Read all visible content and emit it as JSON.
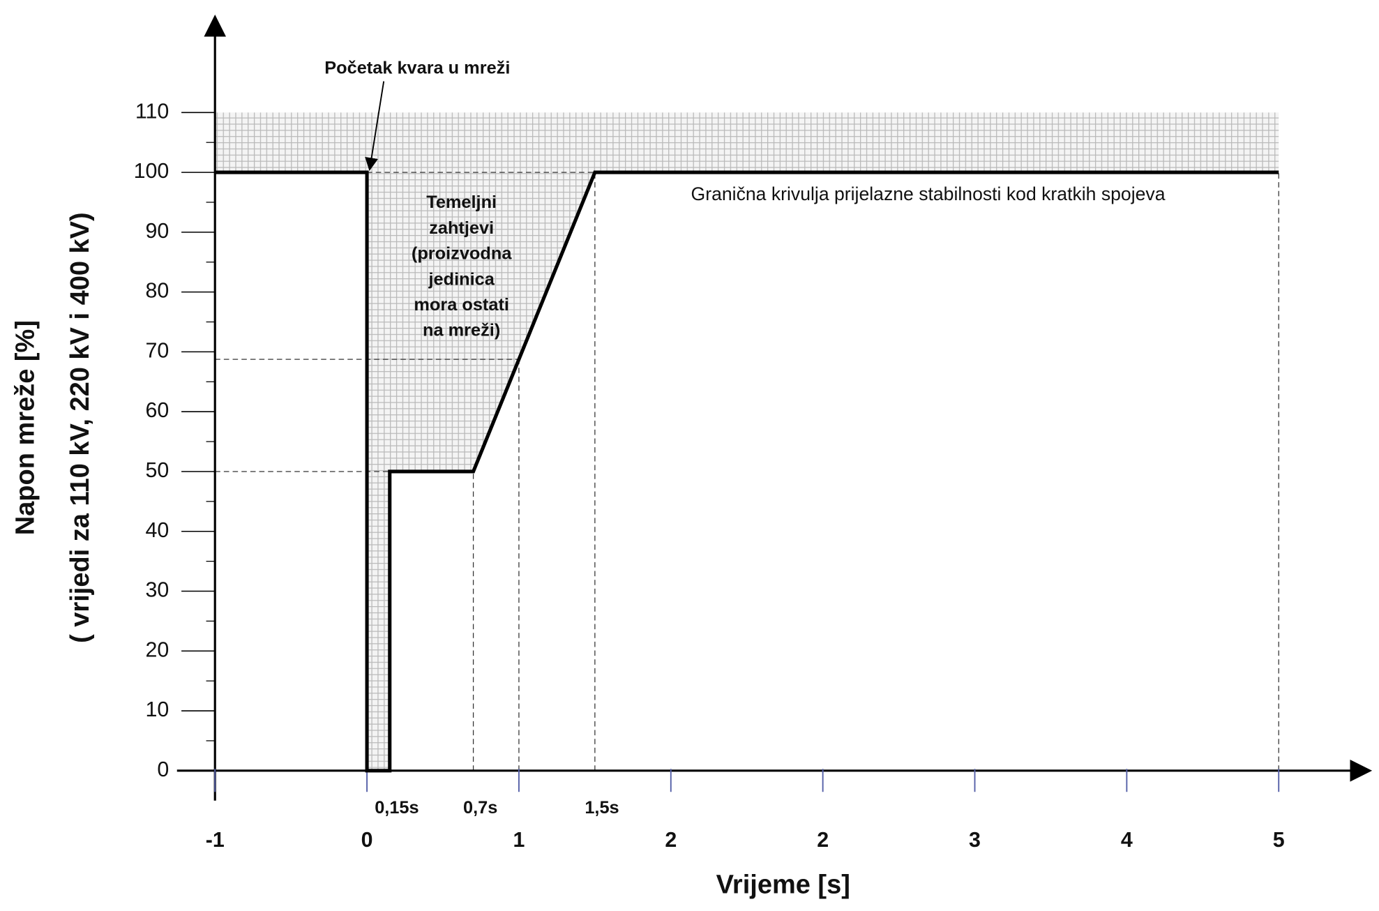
{
  "chart_data": {
    "type": "line",
    "annotation_top": "Početak kvara u mreži",
    "region_label": [
      "Temeljni",
      "zahtjevi",
      "(proizvodna",
      "jedinica",
      "mora ostati",
      "na mreži)"
    ],
    "curve_label": "Granična krivulja prijelazne stabilnosti kod kratkih spojeva",
    "x_label": "Vrijeme [s]",
    "y_label": [
      "Napon mreže [%]",
      "( vrijedi za 110 kV, 220 kV i 400 kV)"
    ],
    "series": [
      {
        "name": "Granična krivulja",
        "color": "#000000",
        "x": [
          -1,
          0,
          0,
          0.15,
          0.15,
          0.7,
          1.5,
          6
        ],
        "values": [
          100,
          100,
          0,
          0,
          50,
          50,
          100,
          100
        ]
      }
    ],
    "shade_top": 110,
    "guides": [
      {
        "x": [
          -1,
          0.15
        ],
        "y": [
          50,
          50
        ]
      },
      {
        "x": [
          -1,
          1
        ],
        "y": [
          68.75,
          68.75
        ]
      },
      {
        "x": [
          0,
          1.5
        ],
        "y": [
          100,
          100
        ]
      },
      {
        "x": [
          0.7,
          0.7
        ],
        "y": [
          0,
          50
        ]
      },
      {
        "x": [
          1,
          1
        ],
        "y": [
          0,
          68.75
        ]
      },
      {
        "x": [
          1.5,
          1.5
        ],
        "y": [
          0,
          100
        ]
      },
      {
        "x": [
          6,
          6
        ],
        "y": [
          0,
          100
        ]
      }
    ],
    "x_annotations": [
      {
        "value": 0.15,
        "label": "0,15s"
      },
      {
        "value": 0.7,
        "label": "0,7s"
      },
      {
        "value": 1.5,
        "label": "1,5s"
      }
    ],
    "xlim": [
      -1.25,
      6.6
    ],
    "ylim": [
      -5,
      126
    ],
    "xticks": [
      -1,
      0,
      1,
      2,
      {
        "value": 3,
        "label": "2"
      },
      {
        "value": 4,
        "label": "3"
      },
      {
        "value": 5,
        "label": "4"
      },
      {
        "value": 6,
        "label": "5"
      }
    ],
    "yticks": [
      0,
      10,
      20,
      30,
      40,
      50,
      60,
      70,
      80,
      90,
      100,
      110
    ],
    "yminor": [
      5,
      15,
      25,
      35,
      45,
      55,
      65,
      75,
      85,
      95,
      105
    ]
  }
}
